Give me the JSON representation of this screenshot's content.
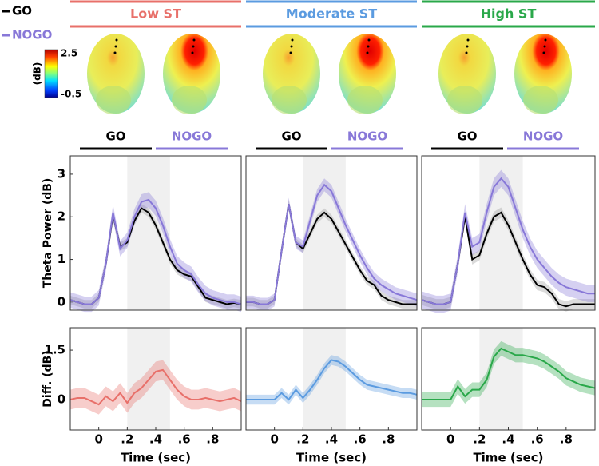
{
  "legend": [
    {
      "name": "GO",
      "color": "#000000"
    },
    {
      "name": "NOGO",
      "color": "#8878d8"
    }
  ],
  "colorbar": {
    "label": "(dB)",
    "max": 2.5,
    "min": -0.5
  },
  "conditions": [
    {
      "title": "Low ST",
      "color": "#e8706a",
      "maps": [
        "GO",
        "NOGO"
      ]
    },
    {
      "title": "Moderate ST",
      "color": "#5b9be0",
      "maps": [
        "GO",
        "NOGO"
      ]
    },
    {
      "title": "High ST",
      "color": "#2aa84a",
      "maps": [
        "GO",
        "NOGO"
      ]
    }
  ],
  "chart_data": [
    {
      "type": "line",
      "ylabel": "Theta Power (dB)",
      "xlim": [
        -0.2,
        1.0
      ],
      "ylim": [
        -0.19,
        3.43
      ],
      "yticks": [
        0,
        1,
        2,
        3
      ],
      "highlight": [
        0.2,
        0.5
      ],
      "x": [
        -0.2,
        -0.15,
        -0.1,
        -0.05,
        0,
        0.05,
        0.1,
        0.15,
        0.2,
        0.25,
        0.3,
        0.35,
        0.4,
        0.45,
        0.5,
        0.55,
        0.6,
        0.65,
        0.7,
        0.75,
        0.8,
        0.85,
        0.9,
        0.95,
        1.0
      ],
      "series": [
        {
          "color": "#000000",
          "error": 0.1,
          "values": [
            0.05,
            0.0,
            -0.05,
            -0.05,
            0.1,
            0.9,
            2.05,
            1.3,
            1.4,
            1.9,
            2.2,
            2.1,
            1.8,
            1.4,
            1.0,
            0.75,
            0.65,
            0.6,
            0.35,
            0.1,
            0.05,
            0.0,
            -0.05,
            -0.02,
            -0.05
          ]
        },
        {
          "color": "#8878d8",
          "error": 0.18,
          "values": [
            0.05,
            0.0,
            -0.05,
            -0.05,
            0.1,
            0.9,
            2.1,
            1.25,
            1.45,
            2.0,
            2.35,
            2.4,
            2.2,
            1.8,
            1.3,
            0.9,
            0.75,
            0.65,
            0.4,
            0.2,
            0.1,
            0.05,
            0.0,
            0.0,
            -0.05
          ]
        }
      ]
    },
    {
      "type": "line",
      "xlim": [
        -0.2,
        1.0
      ],
      "ylim": [
        -0.19,
        3.43
      ],
      "highlight": [
        0.2,
        0.5
      ],
      "x": [
        -0.2,
        -0.15,
        -0.1,
        -0.05,
        0,
        0.05,
        0.1,
        0.15,
        0.2,
        0.25,
        0.3,
        0.35,
        0.4,
        0.45,
        0.5,
        0.55,
        0.6,
        0.65,
        0.7,
        0.75,
        0.8,
        0.85,
        0.9,
        0.95,
        1.0
      ],
      "series": [
        {
          "color": "#000000",
          "error": 0.1,
          "values": [
            0.0,
            0.0,
            -0.05,
            -0.05,
            0.05,
            1.2,
            2.3,
            1.4,
            1.25,
            1.6,
            1.95,
            2.1,
            1.95,
            1.65,
            1.35,
            1.05,
            0.75,
            0.5,
            0.4,
            0.15,
            0.05,
            0.0,
            -0.05,
            -0.05,
            -0.05
          ]
        },
        {
          "color": "#8878d8",
          "error": 0.15,
          "values": [
            0.0,
            0.0,
            -0.05,
            -0.05,
            0.05,
            1.2,
            2.3,
            1.4,
            1.3,
            1.9,
            2.5,
            2.75,
            2.6,
            2.2,
            1.8,
            1.45,
            1.1,
            0.8,
            0.55,
            0.4,
            0.3,
            0.2,
            0.15,
            0.1,
            0.05
          ]
        }
      ]
    },
    {
      "type": "line",
      "xlim": [
        -0.2,
        1.0
      ],
      "ylim": [
        -0.19,
        3.43
      ],
      "highlight": [
        0.2,
        0.5
      ],
      "x": [
        -0.2,
        -0.15,
        -0.1,
        -0.05,
        0,
        0.05,
        0.1,
        0.15,
        0.2,
        0.25,
        0.3,
        0.35,
        0.4,
        0.45,
        0.5,
        0.55,
        0.6,
        0.65,
        0.7,
        0.75,
        0.8,
        0.85,
        0.9,
        0.95,
        1.0
      ],
      "series": [
        {
          "color": "#000000",
          "error": 0.12,
          "values": [
            0.05,
            0.0,
            -0.05,
            -0.05,
            0.0,
            0.9,
            2.0,
            1.0,
            1.1,
            1.6,
            2.0,
            2.1,
            1.8,
            1.4,
            1.0,
            0.65,
            0.4,
            0.35,
            0.2,
            -0.05,
            -0.1,
            -0.05,
            -0.05,
            -0.05,
            -0.05
          ]
        },
        {
          "color": "#8878d8",
          "error": 0.2,
          "values": [
            0.05,
            0.0,
            -0.05,
            -0.05,
            0.0,
            0.9,
            2.1,
            1.3,
            1.4,
            2.1,
            2.7,
            2.9,
            2.7,
            2.2,
            1.7,
            1.3,
            1.0,
            0.8,
            0.6,
            0.45,
            0.35,
            0.3,
            0.25,
            0.2,
            0.2
          ]
        }
      ]
    },
    {
      "type": "line",
      "ylabel": "Diff. (dB)",
      "xlabel": "Time (sec)",
      "xlim": [
        -0.2,
        1.0
      ],
      "ylim": [
        -0.92,
        2.18
      ],
      "yticks": [
        0,
        1.5
      ],
      "highlight": [
        0.2,
        0.5
      ],
      "xticks": [
        0,
        {
          "value": 0.2,
          "label": ".2"
        },
        {
          "value": 0.4,
          "label": ".4"
        },
        {
          "value": 0.6,
          "label": ".6"
        },
        {
          "value": 0.8,
          "label": ".8"
        }
      ],
      "x": [
        -0.2,
        -0.15,
        -0.1,
        -0.05,
        0,
        0.05,
        0.1,
        0.15,
        0.2,
        0.25,
        0.3,
        0.35,
        0.4,
        0.45,
        0.5,
        0.55,
        0.6,
        0.65,
        0.7,
        0.75,
        0.8,
        0.85,
        0.9,
        0.95,
        1.0
      ],
      "series": [
        {
          "color": "#e8706a",
          "error": 0.3,
          "values": [
            0.0,
            0.05,
            0.05,
            -0.05,
            -0.15,
            0.1,
            -0.05,
            0.2,
            -0.1,
            0.2,
            0.35,
            0.6,
            0.85,
            0.9,
            0.6,
            0.3,
            0.1,
            0.0,
            0.0,
            0.05,
            0.0,
            -0.05,
            0.0,
            0.05,
            -0.05
          ]
        }
      ]
    },
    {
      "type": "line",
      "xlabel": "Time (sec)",
      "xlim": [
        -0.2,
        1.0
      ],
      "ylim": [
        -0.92,
        2.18
      ],
      "highlight": [
        0.2,
        0.5
      ],
      "xticks": [
        0,
        {
          "value": 0.2,
          "label": ".2"
        },
        {
          "value": 0.4,
          "label": ".4"
        },
        {
          "value": 0.6,
          "label": ".6"
        },
        {
          "value": 0.8,
          "label": ".8"
        }
      ],
      "x": [
        -0.2,
        -0.15,
        -0.1,
        -0.05,
        0,
        0.05,
        0.1,
        0.15,
        0.2,
        0.25,
        0.3,
        0.35,
        0.4,
        0.45,
        0.5,
        0.55,
        0.6,
        0.65,
        0.7,
        0.75,
        0.8,
        0.85,
        0.9,
        0.95,
        1.0
      ],
      "series": [
        {
          "color": "#5b9be0",
          "error": 0.15,
          "values": [
            0.0,
            0.0,
            0.0,
            0.0,
            0.0,
            0.2,
            0.0,
            0.3,
            0.05,
            0.3,
            0.6,
            0.95,
            1.2,
            1.15,
            1.0,
            0.8,
            0.6,
            0.45,
            0.4,
            0.35,
            0.3,
            0.25,
            0.2,
            0.2,
            0.15
          ]
        }
      ]
    },
    {
      "type": "line",
      "xlabel": "Time (sec)",
      "xlim": [
        -0.2,
        1.0
      ],
      "ylim": [
        -0.92,
        2.18
      ],
      "highlight": [
        0.2,
        0.5
      ],
      "xticks": [
        0,
        {
          "value": 0.2,
          "label": ".2"
        },
        {
          "value": 0.4,
          "label": ".4"
        },
        {
          "value": 0.6,
          "label": ".6"
        },
        {
          "value": 0.8,
          "label": ".8"
        }
      ],
      "x": [
        -0.2,
        -0.15,
        -0.1,
        -0.05,
        0,
        0.05,
        0.1,
        0.15,
        0.2,
        0.25,
        0.3,
        0.35,
        0.4,
        0.45,
        0.5,
        0.55,
        0.6,
        0.65,
        0.7,
        0.75,
        0.8,
        0.85,
        0.9,
        0.95,
        1.0
      ],
      "series": [
        {
          "color": "#2aa84a",
          "error": 0.22,
          "values": [
            0.0,
            0.0,
            0.0,
            0.0,
            0.0,
            0.4,
            0.1,
            0.3,
            0.3,
            0.6,
            1.3,
            1.55,
            1.45,
            1.35,
            1.35,
            1.3,
            1.25,
            1.15,
            1.0,
            0.85,
            0.65,
            0.55,
            0.45,
            0.4,
            0.35
          ]
        }
      ]
    }
  ]
}
